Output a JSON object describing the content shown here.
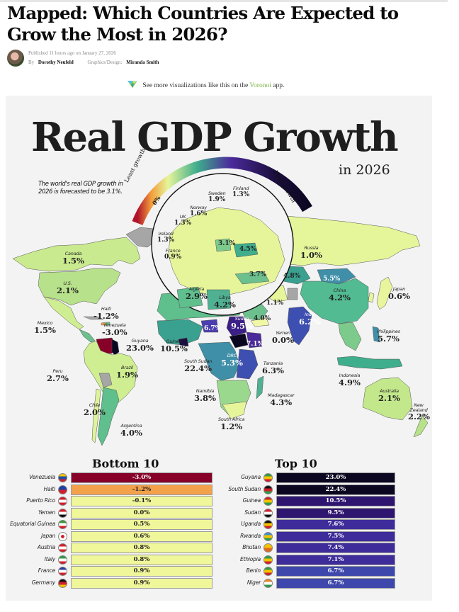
{
  "article": {
    "headline": "Mapped: Which Countries Are Expected to Grow the Most in 2026?",
    "published": "Published 11 hours ago on January 27, 2026",
    "by_label": "By",
    "author": "Dorothy Neufeld",
    "graphics_label": "Graphics/Design:",
    "designer": "Miranda Smith",
    "voronoi_pre": "See more visualizations like this on the",
    "voronoi_link": "Voronoi",
    "voronoi_post": "app."
  },
  "colors": {
    "panel_bg": "#f3f3f3",
    "most_growth": "#0c0720",
    "least_growth": "#b0122a",
    "low_green": "#e6f59a",
    "mid_green": "#59c08a",
    "teal": "#2f8f97",
    "blue": "#3d4fb0",
    "purple": "#4b2a9a",
    "no_data": "#a6a6a6",
    "venezuela": "#860028",
    "haiti": "#f3a14a",
    "voronoi_link": "#7cb342"
  },
  "chart_data": {
    "type": "choropleth-map",
    "title": "Real GDP Growth",
    "subtitle": "in 2026",
    "note": "The world's real GDP growth in 2026 is forecasted to be 3.1%.",
    "world_growth_pct": 3.1,
    "legend": {
      "type": "color-scale-arc",
      "low_label": "Least growth",
      "high_label": "Most growth",
      "mid_label": "0%",
      "placement": "top-center"
    },
    "unit": "% real GDP growth",
    "map_labels": [
      {
        "name": "Canada",
        "value": "1.5%"
      },
      {
        "name": "U.S.",
        "value": "2.1%"
      },
      {
        "name": "Mexico",
        "value": "1.5%"
      },
      {
        "name": "Haiti",
        "value": "-1.2%"
      },
      {
        "name": "Venezuela",
        "value": "-3.0%"
      },
      {
        "name": "Guyana",
        "value": "23.0%"
      },
      {
        "name": "Peru",
        "value": "2.7%"
      },
      {
        "name": "Brazil",
        "value": "1.9%"
      },
      {
        "name": "Chile",
        "value": "2.0%"
      },
      {
        "name": "Argentina",
        "value": "4.0%"
      },
      {
        "name": "Sweden",
        "value": "1.9%"
      },
      {
        "name": "Finland",
        "value": "1.3%"
      },
      {
        "name": "Norway",
        "value": "1.6%"
      },
      {
        "name": "UK",
        "value": "1.3%"
      },
      {
        "name": "Ireland",
        "value": "1.3%"
      },
      {
        "name": "France",
        "value": "0.9%"
      },
      {
        "name": "",
        "value": "3.1%"
      },
      {
        "name": "",
        "value": "4.5%"
      },
      {
        "name": "",
        "value": "3.7%"
      },
      {
        "name": "Algeria",
        "value": "2.9%"
      },
      {
        "name": "Libya",
        "value": "4.2%"
      },
      {
        "name": "Russia",
        "value": "1.0%"
      },
      {
        "name": "",
        "value": "4.8%"
      },
      {
        "name": "",
        "value": "5.5%"
      },
      {
        "name": "China",
        "value": "4.2%"
      },
      {
        "name": "Japan",
        "value": "0.6%"
      },
      {
        "name": "",
        "value": "1.1%"
      },
      {
        "name": "India",
        "value": "6.2%"
      },
      {
        "name": "Philippines",
        "value": "5.7%"
      },
      {
        "name": "Sudan",
        "value": "9.5%"
      },
      {
        "name": "",
        "value": "4.0%"
      },
      {
        "name": "",
        "value": "6.7%"
      },
      {
        "name": "",
        "value": "7.1%"
      },
      {
        "name": "Yemen",
        "value": "0.0%"
      },
      {
        "name": "Guinea",
        "value": "10.5%"
      },
      {
        "name": "South Sudan",
        "value": "22.4%"
      },
      {
        "name": "DRC",
        "value": "5.3%"
      },
      {
        "name": "Tanzania",
        "value": "6.3%"
      },
      {
        "name": "Namibia",
        "value": "3.8%"
      },
      {
        "name": "South Africa",
        "value": "1.2%"
      },
      {
        "name": "Madagascar",
        "value": "4.3%"
      },
      {
        "name": "Indonesia",
        "value": "4.9%"
      },
      {
        "name": "Australia",
        "value": "2.1%"
      },
      {
        "name": "New Zealand",
        "value": "2.2%"
      }
    ],
    "bottom10": {
      "title": "Bottom 10",
      "rows": [
        {
          "country": "Venezuela",
          "value": -3.0,
          "label": "-3.0%"
        },
        {
          "country": "Haiti",
          "value": -1.2,
          "label": "-1.2%"
        },
        {
          "country": "Puerto Rico",
          "value": -0.1,
          "label": "-0.1%"
        },
        {
          "country": "Yemen",
          "value": 0.0,
          "label": "0.0%"
        },
        {
          "country": "Equatorial Guinea",
          "value": 0.5,
          "label": "0.5%"
        },
        {
          "country": "Japan",
          "value": 0.6,
          "label": "0.6%"
        },
        {
          "country": "Austria",
          "value": 0.8,
          "label": "0.8%"
        },
        {
          "country": "Italy",
          "value": 0.8,
          "label": "0.8%"
        },
        {
          "country": "France",
          "value": 0.9,
          "label": "0.9%"
        },
        {
          "country": "Germany",
          "value": 0.9,
          "label": "0.9%"
        }
      ]
    },
    "top10": {
      "title": "Top 10",
      "rows": [
        {
          "country": "Guyana",
          "value": 23.0,
          "label": "23.0%"
        },
        {
          "country": "South Sudan",
          "value": 22.4,
          "label": "22.4%"
        },
        {
          "country": "Guinea",
          "value": 10.5,
          "label": "10.5%"
        },
        {
          "country": "Sudan",
          "value": 9.5,
          "label": "9.5%"
        },
        {
          "country": "Uganda",
          "value": 7.6,
          "label": "7.6%"
        },
        {
          "country": "Rwanda",
          "value": 7.5,
          "label": "7.5%"
        },
        {
          "country": "Bhutan",
          "value": 7.4,
          "label": "7.4%"
        },
        {
          "country": "Ethiopia",
          "value": 7.1,
          "label": "7.1%"
        },
        {
          "country": "Benin",
          "value": 6.7,
          "label": "6.7%"
        },
        {
          "country": "Niger",
          "value": 6.7,
          "label": "6.7%"
        }
      ]
    }
  }
}
